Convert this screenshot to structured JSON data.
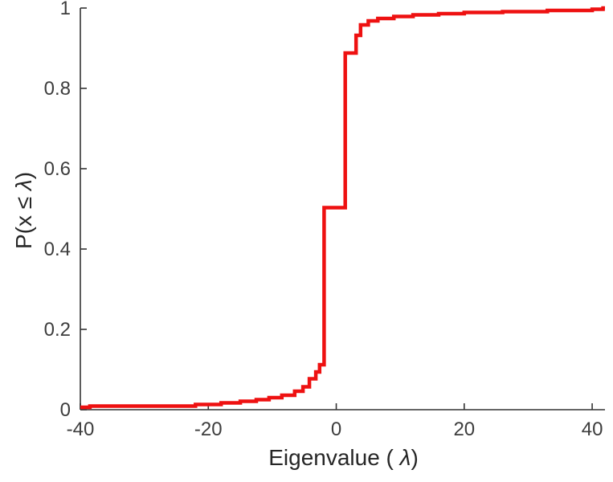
{
  "figure": {
    "background": "#ffffff",
    "axis_color": "#333333",
    "tick_label_color": "#3d3d3d"
  },
  "chart_data": {
    "type": "line",
    "subtype": "step-ecdf",
    "title": "",
    "xlabel": "Eigenvalue ( λ)",
    "ylabel": "P(x ≤ λ)",
    "xlim": [
      -40,
      42
    ],
    "ylim": [
      0,
      1
    ],
    "xticks": [
      -40,
      -20,
      0,
      20,
      40
    ],
    "xtick_labels": [
      "-40",
      "-20",
      "0",
      "20",
      "40"
    ],
    "yticks": [
      0,
      0.2,
      0.4,
      0.6,
      0.8,
      1
    ],
    "ytick_labels": [
      "0",
      "0.2",
      "0.4",
      "0.6",
      "0.8",
      "1"
    ],
    "grid": false,
    "legend": null,
    "line_color": "#ee1111",
    "line_width": 4.5,
    "points": [
      [
        -40,
        0.006
      ],
      [
        -38.5,
        0.009
      ],
      [
        -22,
        0.013
      ],
      [
        -18,
        0.017
      ],
      [
        -15,
        0.021
      ],
      [
        -12.5,
        0.025
      ],
      [
        -10.5,
        0.03
      ],
      [
        -8.5,
        0.036
      ],
      [
        -6.5,
        0.046
      ],
      [
        -5.2,
        0.057
      ],
      [
        -4.2,
        0.077
      ],
      [
        -3.2,
        0.094
      ],
      [
        -2.6,
        0.112
      ],
      [
        -1.9,
        0.503
      ],
      [
        1.4,
        0.888
      ],
      [
        3.1,
        0.932
      ],
      [
        3.8,
        0.958
      ],
      [
        5,
        0.968
      ],
      [
        6.5,
        0.974
      ],
      [
        9,
        0.979
      ],
      [
        12,
        0.983
      ],
      [
        16,
        0.986
      ],
      [
        20,
        0.989
      ],
      [
        26,
        0.991
      ],
      [
        33,
        0.994
      ],
      [
        40,
        0.997
      ],
      [
        41.7,
        1.0
      ]
    ]
  }
}
